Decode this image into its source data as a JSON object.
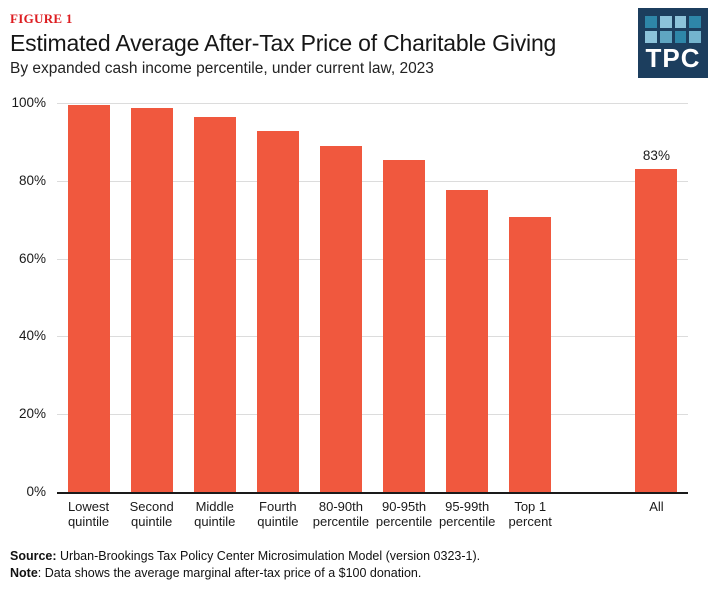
{
  "header": {
    "figure_label": "FIGURE 1",
    "title": "Estimated Average After-Tax Price of Charitable Giving",
    "subtitle": "By expanded cash income percentile, under current law, 2023"
  },
  "logo": {
    "text": "TPC",
    "bg_color": "#1C3E5E",
    "square_colors": [
      "#2E86A8",
      "#8CC3DA",
      "#8CC3DA",
      "#2E86A8",
      "#8CC3DA",
      "#5FA6C2",
      "#2E86A8",
      "#74B4CE"
    ]
  },
  "chart_data": {
    "type": "bar",
    "title": "Estimated Average After-Tax Price of Charitable Giving",
    "subtitle": "By expanded cash income percentile, under current law, 2023",
    "xlabel": "",
    "ylabel": "",
    "bar_color": "#F0583E",
    "grid": "horizontal",
    "legend": "none",
    "ylim": [
      0,
      100
    ],
    "yticks": [
      0,
      20,
      40,
      60,
      80,
      100
    ],
    "ytick_labels": [
      "0%",
      "20%",
      "40%",
      "60%",
      "80%",
      "100%"
    ],
    "categories": [
      "Lowest quintile",
      "Second quintile",
      "Middle quintile",
      "Fourth quintile",
      "80-90th percentile",
      "90-95th percentile",
      "95-99th percentile",
      "Top 1 percent",
      "All"
    ],
    "category_lines": [
      [
        "Lowest",
        "quintile"
      ],
      [
        "Second",
        "quintile"
      ],
      [
        "Middle",
        "quintile"
      ],
      [
        "Fourth",
        "quintile"
      ],
      [
        "80-90th",
        "percentile"
      ],
      [
        "90-95th",
        "percentile"
      ],
      [
        "95-99th",
        "percentile"
      ],
      [
        "Top 1",
        "percent"
      ],
      [
        "All"
      ]
    ],
    "values": [
      99.6,
      98.7,
      96.3,
      92.9,
      88.9,
      85.4,
      77.7,
      70.7,
      83
    ],
    "data_labels": [
      null,
      null,
      null,
      null,
      null,
      null,
      null,
      null,
      "83%"
    ],
    "slots": [
      0,
      1,
      2,
      3,
      4,
      5,
      6,
      7,
      9
    ],
    "total_slots": 10
  },
  "footer": {
    "source_label": "Source:",
    "source_text": " Urban-Brookings Tax Policy Center Microsimulation Model (version 0323-1).",
    "note_label": "Note",
    "note_text": ": Data shows the average marginal after-tax price of a $100 donation."
  }
}
